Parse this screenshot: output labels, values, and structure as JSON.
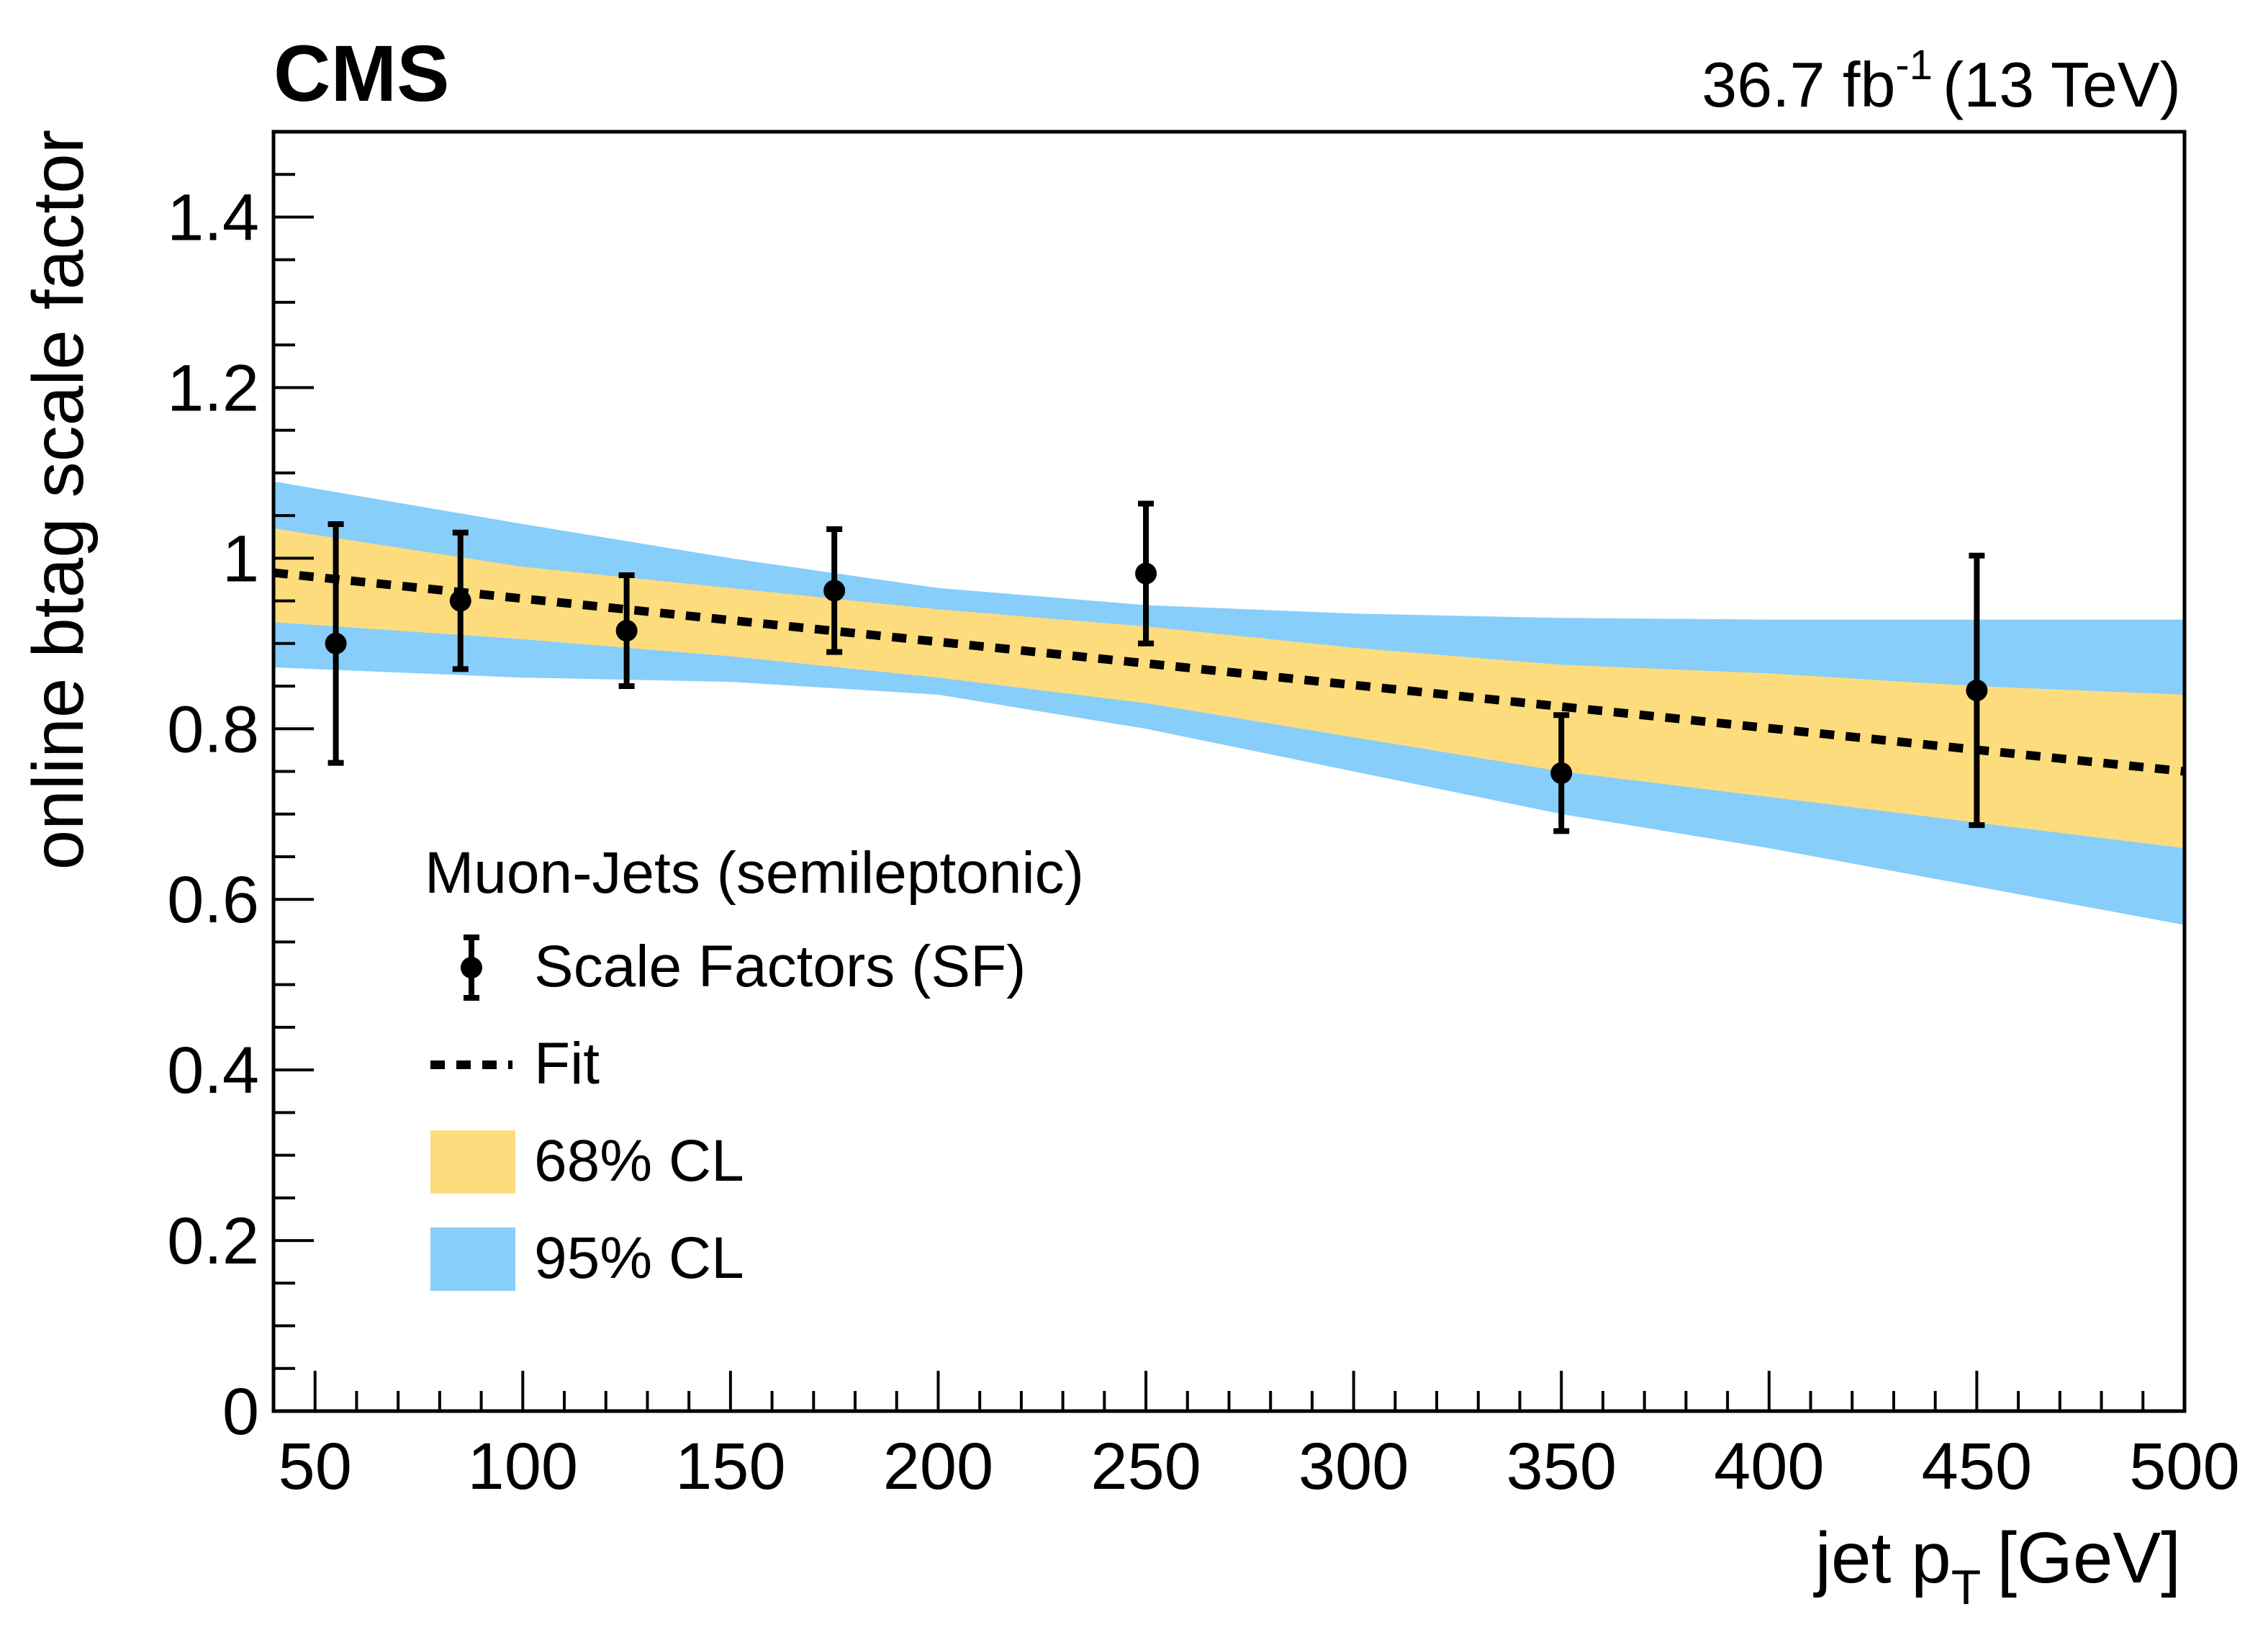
{
  "chart_data": {
    "type": "scatter",
    "experiment_label": "CMS",
    "lumi": {
      "value": "36.7 fb",
      "superscript": "-1",
      "energy": "(13 TeV)"
    },
    "xlabel": {
      "main": "jet p",
      "subscript": "T",
      "unit": "[GeV]"
    },
    "ylabel": "online btag scale factor",
    "xlim": [
      40,
      500
    ],
    "ylim": [
      0,
      1.5
    ],
    "x_ticks": [
      50,
      100,
      150,
      200,
      250,
      300,
      350,
      400,
      450,
      500
    ],
    "y_ticks": [
      0,
      0.2,
      0.4,
      0.6,
      0.8,
      1,
      1.2,
      1.4
    ],
    "y_tick_labels": [
      "0",
      "0.2",
      "0.4",
      "0.6",
      "0.8",
      "1",
      "1.2",
      "1.4"
    ],
    "x_minor_step": 10,
    "y_minor_step": 0.05,
    "colors": {
      "band68": "#fddc7d",
      "band95": "#87cefa",
      "points": "#000000",
      "fit": "#000000"
    },
    "series": [
      {
        "name": "Scale Factors (SF)",
        "points": [
          {
            "x": 55,
            "y": 0.9,
            "err": 0.14
          },
          {
            "x": 85,
            "y": 0.95,
            "err": 0.08
          },
          {
            "x": 125,
            "y": 0.915,
            "err": 0.065
          },
          {
            "x": 175,
            "y": 0.962,
            "err": 0.072
          },
          {
            "x": 250,
            "y": 0.982,
            "err": 0.082
          },
          {
            "x": 350,
            "y": 0.748,
            "err": 0.068
          },
          {
            "x": 450,
            "y": 0.845,
            "err": 0.158
          }
        ]
      }
    ],
    "fit": {
      "name": "Fit",
      "x": [
        40,
        500
      ],
      "y": [
        0.983,
        0.75
      ]
    },
    "band68": {
      "name": "68% CL",
      "x": [
        40,
        100,
        150,
        200,
        250,
        300,
        350,
        400,
        450,
        500
      ],
      "upper": [
        1.035,
        0.99,
        0.965,
        0.94,
        0.92,
        0.895,
        0.875,
        0.865,
        0.85,
        0.84
      ],
      "lower": [
        0.925,
        0.905,
        0.885,
        0.86,
        0.83,
        0.79,
        0.75,
        0.72,
        0.69,
        0.66
      ]
    },
    "band95": {
      "name": "95% CL",
      "x": [
        40,
        100,
        150,
        200,
        250,
        300,
        350,
        400,
        450,
        500
      ],
      "upper": [
        1.09,
        1.04,
        1.0,
        0.965,
        0.945,
        0.935,
        0.93,
        0.928,
        0.928,
        0.928
      ],
      "lower": [
        0.872,
        0.86,
        0.855,
        0.84,
        0.8,
        0.75,
        0.7,
        0.66,
        0.615,
        0.57
      ]
    },
    "legend": {
      "header": "Muon-Jets (semileptonic)",
      "entries": [
        {
          "label": "Scale Factors (SF)",
          "kind": "point"
        },
        {
          "label": "Fit",
          "kind": "line"
        },
        {
          "label": "68% CL",
          "kind": "band68"
        },
        {
          "label": "95% CL",
          "kind": "band95"
        }
      ],
      "placement": "center-left"
    }
  }
}
